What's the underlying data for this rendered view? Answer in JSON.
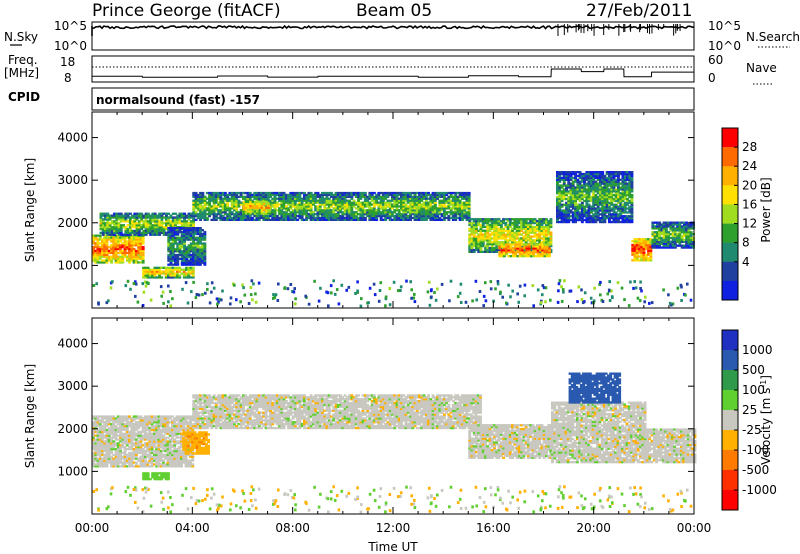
{
  "header": {
    "station": "Prince George (fitACF)",
    "beam": "Beam 05",
    "date": "27/Feb/2011"
  },
  "strips": {
    "nsky_label": "N.Sky",
    "nsky_ticks": [
      "10^5",
      "10^0"
    ],
    "nsky_right_ticks": [
      "10^5",
      "10^0"
    ],
    "nsearch_label": "N.Search",
    "freq_label": "Freq.",
    "freq_unit": "[MHz]",
    "freq_ticks": [
      "18",
      "8"
    ],
    "nave_ticks": [
      "60",
      "0"
    ],
    "nave_label": "Nave",
    "cpid_label": "CPID",
    "cpid_value": "normalsound (fast) -157"
  },
  "power_scale": {
    "label": "Power [dB]",
    "ticks": [
      "28",
      "24",
      "20",
      "16",
      "12",
      "8",
      "4"
    ],
    "colors": [
      "#ff0000",
      "#ff6a00",
      "#ffb000",
      "#ffe000",
      "#a0dc20",
      "#2ea02e",
      "#1f8a70",
      "#2040a0",
      "#1020e0"
    ]
  },
  "velocity_scale": {
    "label": "Velocity [m s",
    "label_sup": "-1",
    "label_close": "]",
    "ticks": [
      "1000",
      "500",
      "100",
      "25",
      "-25",
      "-100",
      "-500",
      "-1000"
    ],
    "colors": [
      "#2030c0",
      "#2a5ab0",
      "#2e9a4a",
      "#60d030",
      "#c8c8c0",
      "#ffb000",
      "#ff7a00",
      "#ff3000",
      "#ff0000"
    ]
  },
  "chart_data": [
    {
      "type": "heatmap",
      "name": "power",
      "ylabel": "Slant Range [km]",
      "ylim": [
        0,
        4600
      ],
      "yticks": [
        "1000",
        "2000",
        "3000",
        "4000"
      ],
      "ytick_values": [
        1000,
        2000,
        3000,
        4000
      ],
      "xlim": [
        0,
        24
      ],
      "bands": [
        {
          "t0": 0.0,
          "t1": 2.0,
          "r0": 1050,
          "r1": 1700,
          "dB": 26
        },
        {
          "t0": 0.3,
          "t1": 4.0,
          "r0": 1700,
          "r1": 2200,
          "dB": 18
        },
        {
          "t0": 2.0,
          "t1": 4.0,
          "r0": 700,
          "r1": 950,
          "dB": 22
        },
        {
          "t0": 3.0,
          "t1": 4.5,
          "r0": 1000,
          "r1": 1900,
          "dB": 14
        },
        {
          "t0": 4.0,
          "t1": 15.0,
          "r0": 2050,
          "r1": 2700,
          "dB": 17
        },
        {
          "t0": 6.0,
          "t1": 7.0,
          "r0": 2200,
          "r1": 2500,
          "dB": 24
        },
        {
          "t0": 15.0,
          "t1": 18.3,
          "r0": 1300,
          "r1": 2100,
          "dB": 20
        },
        {
          "t0": 16.2,
          "t1": 18.2,
          "r0": 1200,
          "r1": 1500,
          "dB": 27
        },
        {
          "t0": 18.5,
          "t1": 21.5,
          "r0": 2000,
          "r1": 3200,
          "dB": 15
        },
        {
          "t0": 21.5,
          "t1": 22.3,
          "r0": 1100,
          "r1": 1600,
          "dB": 28
        },
        {
          "t0": 22.3,
          "t1": 24.0,
          "r0": 1400,
          "r1": 2000,
          "dB": 16
        }
      ]
    },
    {
      "type": "heatmap",
      "name": "velocity",
      "ylabel": "Slant Range [km]",
      "xlabel": "Time UT",
      "ylim": [
        0,
        4600
      ],
      "yticks": [
        "1000",
        "2000",
        "3000",
        "4000"
      ],
      "ytick_values": [
        1000,
        2000,
        3000,
        4000
      ],
      "xlim": [
        0,
        24
      ],
      "xticks": [
        "00:00",
        "04:00",
        "08:00",
        "12:00",
        "16:00",
        "20:00",
        "00:00"
      ],
      "xtick_values": [
        0,
        4,
        8,
        12,
        16,
        20,
        24
      ],
      "bands": [
        {
          "t0": 0.0,
          "t1": 4.0,
          "r0": 1100,
          "r1": 2300,
          "v": 0
        },
        {
          "t0": 3.6,
          "t1": 4.6,
          "r0": 1400,
          "r1": 1900,
          "v": -80
        },
        {
          "t0": 2.0,
          "t1": 3.0,
          "r0": 800,
          "r1": 950,
          "v": 60
        },
        {
          "t0": 4.0,
          "t1": 15.5,
          "r0": 2000,
          "r1": 2800,
          "v": 0
        },
        {
          "t0": 15.0,
          "t1": 18.3,
          "r0": 1300,
          "r1": 2100,
          "v": 0
        },
        {
          "t0": 18.3,
          "t1": 22.0,
          "r0": 1200,
          "r1": 2600,
          "v": 0
        },
        {
          "t0": 19.0,
          "t1": 21.0,
          "r0": 2600,
          "r1": 3300,
          "v": 600
        },
        {
          "t0": 22.0,
          "t1": 24.0,
          "r0": 1200,
          "r1": 2000,
          "v": 0
        }
      ]
    },
    {
      "type": "line",
      "name": "frequency",
      "ylim": [
        8,
        18
      ],
      "x": [
        0,
        2,
        2.01,
        5,
        5.01,
        7,
        7.01,
        9,
        9.01,
        13,
        13.01,
        15,
        15.01,
        17,
        17.01,
        18.3,
        18.31,
        19.5,
        19.51,
        20.4,
        20.41,
        21.2,
        21.21,
        22.3,
        22.31,
        24
      ],
      "y": [
        10.2,
        10.2,
        9.8,
        9.8,
        10.3,
        10.3,
        9.9,
        9.9,
        10.2,
        10.2,
        9.8,
        9.8,
        10.4,
        10.4,
        10.0,
        10.0,
        13.0,
        13.0,
        12.0,
        12.0,
        13.0,
        13.0,
        10.0,
        10.0,
        11.8,
        11.8
      ]
    }
  ]
}
